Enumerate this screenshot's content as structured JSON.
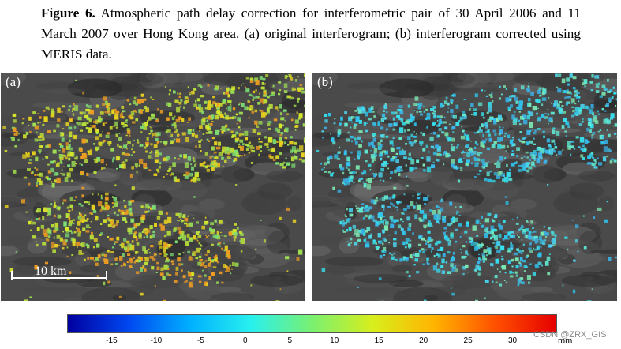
{
  "caption": {
    "label": "Figure 6.",
    "text": " Atmospheric path delay correction for interferometric pair of 30 April 2006 and 11 March 2007 over Hong Kong area. (a) original interferogram; (b) interferogram corrected using MERIS data."
  },
  "panels": [
    {
      "label": "(a)",
      "palette": [
        "#d8e82a",
        "#b8e03a",
        "#9ee052",
        "#e8d21e",
        "#ef9d22",
        "#7de074"
      ]
    },
    {
      "label": "(b)",
      "palette": [
        "#36e0ec",
        "#4ad6f0",
        "#5fe8d2",
        "#2fc6f0",
        "#7ce8b0",
        "#3ab4ea"
      ]
    }
  ],
  "scale_bar": {
    "label": "10 km"
  },
  "colorbar": {
    "ticks": [
      "-15",
      "-10",
      "-5",
      "0",
      "5",
      "10",
      "15",
      "20",
      "25",
      "30"
    ],
    "unit": "mm",
    "colors": [
      "#0000a0",
      "#0048f0",
      "#00b0ff",
      "#28f0ee",
      "#7af070",
      "#d8ee1c",
      "#ffb400",
      "#ff5000",
      "#e60000"
    ]
  },
  "watermark": "CSDN @ZRX_GIS"
}
